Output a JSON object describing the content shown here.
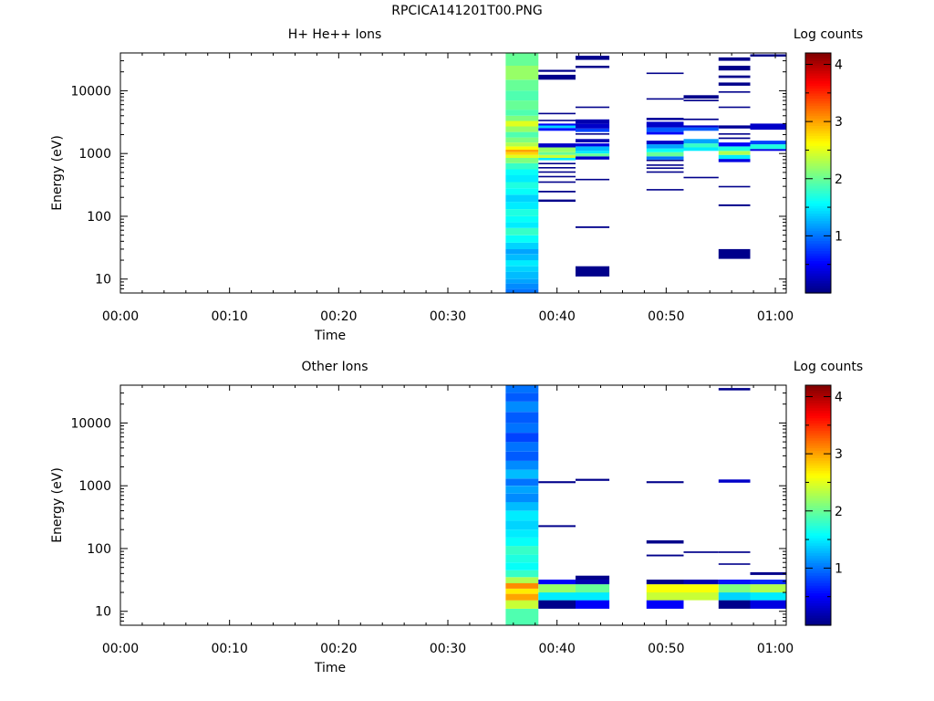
{
  "figure_title": "RPCICA141201T00.PNG",
  "colors": {
    "axis": "#000000",
    "colormap": "jet",
    "colormap_stops": [
      "#00007f",
      "#0000ff",
      "#007fff",
      "#00ffff",
      "#7fff7f",
      "#ffff00",
      "#ff7f00",
      "#ff0000",
      "#7f0000"
    ]
  },
  "chart_data": [
    {
      "type": "heatmap",
      "title": "H+ He++ Ions",
      "xlabel": "Time",
      "ylabel": "Energy (eV)",
      "xticks": [
        "00:00",
        "00:10",
        "00:20",
        "00:30",
        "00:40",
        "00:50",
        "01:00"
      ],
      "xlim_minutes": [
        0,
        61
      ],
      "y_scale": "log",
      "yticks": [
        "10",
        "100",
        "1000",
        "10000"
      ],
      "ylim": [
        6,
        40000
      ],
      "colorbar": {
        "label": "Log counts",
        "range": [
          0,
          4.2
        ],
        "ticks": [
          "1",
          "2",
          "3",
          "4"
        ]
      },
      "columns": [
        {
          "t0": 35.3,
          "t1": 38.3,
          "cells": [
            [
              6,
              7,
              1.0
            ],
            [
              7,
              8.5,
              1.1
            ],
            [
              8.5,
              10,
              1.2
            ],
            [
              10,
              13,
              1.3
            ],
            [
              13,
              16,
              1.4
            ],
            [
              16,
              20,
              1.5
            ],
            [
              20,
              25,
              1.3
            ],
            [
              25,
              30,
              1.2
            ],
            [
              30,
              38,
              1.4
            ],
            [
              38,
              50,
              1.6
            ],
            [
              50,
              65,
              1.8
            ],
            [
              65,
              80,
              1.5
            ],
            [
              80,
              100,
              1.6
            ],
            [
              100,
              130,
              1.7
            ],
            [
              130,
              170,
              1.5
            ],
            [
              170,
              220,
              1.4
            ],
            [
              220,
              280,
              1.6
            ],
            [
              280,
              350,
              1.7
            ],
            [
              350,
              450,
              1.5
            ],
            [
              450,
              560,
              1.6
            ],
            [
              560,
              700,
              1.8
            ],
            [
              700,
              850,
              2.1
            ],
            [
              850,
              950,
              2.5
            ],
            [
              950,
              1050,
              2.8
            ],
            [
              1050,
              1150,
              3.0
            ],
            [
              1150,
              1300,
              2.6
            ],
            [
              1300,
              1500,
              2.3
            ],
            [
              1500,
              1800,
              2.1
            ],
            [
              1800,
              2200,
              1.9
            ],
            [
              2200,
              2700,
              2.2
            ],
            [
              2700,
              3300,
              2.5
            ],
            [
              3300,
              4000,
              2.1
            ],
            [
              4000,
              5000,
              1.9
            ],
            [
              5000,
              7000,
              2.0
            ],
            [
              7000,
              10000,
              1.9
            ],
            [
              10000,
              15000,
              2.0
            ],
            [
              15000,
              25000,
              2.2
            ],
            [
              25000,
              40000,
              2.0
            ]
          ]
        },
        {
          "t0": 38.3,
          "t1": 41.7,
          "cells": [
            [
              170,
              185,
              0.05
            ],
            [
              240,
              255,
              0.05
            ],
            [
              345,
              360,
              0.05
            ],
            [
              420,
              440,
              0.05
            ],
            [
              500,
              520,
              0.05
            ],
            [
              590,
              610,
              0.05
            ],
            [
              690,
              710,
              0.05
            ],
            [
              780,
              850,
              1.5
            ],
            [
              850,
              950,
              2.4
            ],
            [
              950,
              1050,
              2.0
            ],
            [
              1050,
              1250,
              2.2
            ],
            [
              1250,
              1450,
              0.3
            ],
            [
              2300,
              2550,
              0.6
            ],
            [
              2550,
              2800,
              1.4
            ],
            [
              2800,
              3000,
              0.5
            ],
            [
              3300,
              3450,
              0.05
            ],
            [
              4300,
              4450,
              0.05
            ],
            [
              15000,
              18000,
              0.05
            ],
            [
              20000,
              21500,
              0.05
            ]
          ]
        },
        {
          "t0": 41.7,
          "t1": 44.8,
          "cells": [
            [
              11,
              16,
              0.05
            ],
            [
              65,
              69,
              0.05
            ],
            [
              380,
              395,
              0.05
            ],
            [
              800,
              900,
              0.3
            ],
            [
              900,
              1000,
              2.0
            ],
            [
              1000,
              1100,
              1.5
            ],
            [
              1100,
              1300,
              1.3
            ],
            [
              1300,
              1450,
              0.4
            ],
            [
              1500,
              1700,
              0.2
            ],
            [
              2000,
              2100,
              0.05
            ],
            [
              2200,
              2500,
              0.8
            ],
            [
              2500,
              3000,
              0.3
            ],
            [
              3000,
              3500,
              0.2
            ],
            [
              5300,
              5600,
              0.05
            ],
            [
              23000,
              25000,
              0.05
            ],
            [
              31000,
              36000,
              0.05
            ]
          ]
        },
        {
          "t0": 48.2,
          "t1": 51.6,
          "cells": [
            [
              260,
              272,
              0.05
            ],
            [
              500,
              520,
              0.05
            ],
            [
              580,
              600,
              0.05
            ],
            [
              650,
              670,
              0.05
            ],
            [
              770,
              800,
              0.05
            ],
            [
              800,
              900,
              1.0
            ],
            [
              900,
              1050,
              2.0
            ],
            [
              1050,
              1200,
              1.6
            ],
            [
              1200,
              1400,
              1.2
            ],
            [
              1400,
              1600,
              0.3
            ],
            [
              2000,
              2200,
              0.5
            ],
            [
              2200,
              2600,
              0.9
            ],
            [
              2600,
              3200,
              0.3
            ],
            [
              3400,
              3700,
              0.1
            ],
            [
              7200,
              7600,
              0.05
            ],
            [
              18500,
              19500,
              0.05
            ]
          ]
        },
        {
          "t0": 51.6,
          "t1": 54.8,
          "cells": [
            [
              410,
              425,
              0.05
            ],
            [
              1100,
              1250,
              1.5
            ],
            [
              1250,
              1450,
              1.8
            ],
            [
              1450,
              1700,
              1.2
            ],
            [
              2300,
              2600,
              0.9
            ],
            [
              2600,
              2800,
              0.3
            ],
            [
              3400,
              3600,
              0.05
            ],
            [
              6800,
              7200,
              0.05
            ],
            [
              7500,
              8500,
              0.05
            ]
          ]
        },
        {
          "t0": 54.8,
          "t1": 57.7,
          "cells": [
            [
              21,
              30,
              0.05
            ],
            [
              145,
              155,
              0.05
            ],
            [
              290,
              305,
              0.05
            ],
            [
              730,
              820,
              0.4
            ],
            [
              820,
              950,
              1.5
            ],
            [
              950,
              1100,
              2.3
            ],
            [
              1100,
              1300,
              1.7
            ],
            [
              1300,
              1500,
              0.5
            ],
            [
              1700,
              1800,
              0.05
            ],
            [
              2000,
              2100,
              0.05
            ],
            [
              2500,
              2800,
              0.1
            ],
            [
              5300,
              5600,
              0.05
            ],
            [
              9300,
              9800,
              0.05
            ],
            [
              12000,
              13500,
              0.05
            ],
            [
              16000,
              17500,
              0.05
            ],
            [
              21000,
              25000,
              0.05
            ],
            [
              30000,
              34000,
              0.05
            ]
          ]
        },
        {
          "t0": 57.7,
          "t1": 61,
          "cells": [
            [
              1100,
              1180,
              0.4
            ],
            [
              1180,
              1400,
              1.7
            ],
            [
              1400,
              1600,
              0.8
            ],
            [
              2400,
              3000,
              0.3
            ],
            [
              35000,
              38000,
              0.05
            ]
          ]
        }
      ]
    },
    {
      "type": "heatmap",
      "title": "Other Ions",
      "xlabel": "Time",
      "ylabel": "Energy (eV)",
      "xticks": [
        "00:00",
        "00:10",
        "00:20",
        "00:30",
        "00:40",
        "00:50",
        "01:00"
      ],
      "xlim_minutes": [
        0,
        61
      ],
      "y_scale": "log",
      "yticks": [
        "10",
        "100",
        "1000",
        "10000"
      ],
      "ylim": [
        6,
        40000
      ],
      "colorbar": {
        "label": "Log counts",
        "range": [
          0,
          4.2
        ],
        "ticks": [
          "1",
          "2",
          "3",
          "4"
        ]
      },
      "columns": [
        {
          "t0": 35.3,
          "t1": 38.3,
          "cells": [
            [
              6,
              11,
              1.9
            ],
            [
              11,
              15,
              2.4
            ],
            [
              15,
              19,
              3.0
            ],
            [
              19,
              23,
              2.7
            ],
            [
              23,
              28,
              3.1
            ],
            [
              28,
              35,
              2.3
            ],
            [
              35,
              45,
              1.8
            ],
            [
              45,
              60,
              1.6
            ],
            [
              60,
              80,
              1.7
            ],
            [
              80,
              110,
              1.8
            ],
            [
              110,
              150,
              1.6
            ],
            [
              150,
              200,
              1.5
            ],
            [
              200,
              280,
              1.4
            ],
            [
              280,
              400,
              1.5
            ],
            [
              400,
              550,
              1.3
            ],
            [
              550,
              750,
              1.1
            ],
            [
              750,
              1000,
              1.2
            ],
            [
              1000,
              1300,
              1.0
            ],
            [
              1300,
              1800,
              1.3
            ],
            [
              1800,
              2500,
              1.1
            ],
            [
              2500,
              3500,
              0.9
            ],
            [
              3500,
              5000,
              1.0
            ],
            [
              5000,
              7000,
              0.8
            ],
            [
              7000,
              10000,
              1.0
            ],
            [
              10000,
              15000,
              0.9
            ],
            [
              15000,
              22000,
              1.1
            ],
            [
              22000,
              30000,
              0.9
            ],
            [
              30000,
              40000,
              1.0
            ]
          ]
        },
        {
          "t0": 38.3,
          "t1": 41.7,
          "cells": [
            [
              11,
              15,
              0.05
            ],
            [
              15,
              20,
              1.5
            ],
            [
              20,
              27,
              2.2
            ],
            [
              27,
              32,
              0.5
            ],
            [
              220,
              235,
              0.05
            ],
            [
              1100,
              1180,
              0.05
            ]
          ]
        },
        {
          "t0": 41.7,
          "t1": 44.8,
          "cells": [
            [
              11,
              15,
              0.5
            ],
            [
              15,
              20,
              1.5
            ],
            [
              20,
              27,
              2.0
            ],
            [
              27,
              32,
              0.2
            ],
            [
              32,
              37,
              0.05
            ],
            [
              1200,
              1290,
              0.05
            ]
          ]
        },
        {
          "t0": 48.2,
          "t1": 51.6,
          "cells": [
            [
              11,
              15,
              0.5
            ],
            [
              15,
              20,
              2.4
            ],
            [
              20,
              27,
              2.6
            ],
            [
              27,
              32,
              0.05
            ],
            [
              75,
              80,
              0.05
            ],
            [
              120,
              135,
              0.05
            ],
            [
              1100,
              1180,
              0.05
            ]
          ]
        },
        {
          "t0": 51.6,
          "t1": 54.8,
          "cells": [
            [
              15,
              20,
              2.4
            ],
            [
              20,
              27,
              2.6
            ],
            [
              27,
              32,
              0.2
            ],
            [
              85,
              90,
              0.05
            ]
          ]
        },
        {
          "t0": 54.8,
          "t1": 57.7,
          "cells": [
            [
              11,
              15,
              0.05
            ],
            [
              15,
              20,
              1.4
            ],
            [
              20,
              27,
              2.1
            ],
            [
              27,
              32,
              0.6
            ],
            [
              55,
              58,
              0.05
            ],
            [
              85,
              90,
              0.05
            ],
            [
              1120,
              1260,
              0.3
            ],
            [
              33000,
              36000,
              0.05
            ]
          ]
        },
        {
          "t0": 57.7,
          "t1": 61,
          "cells": [
            [
              11,
              15,
              0.4
            ],
            [
              15,
              20,
              1.5
            ],
            [
              20,
              27,
              2.3
            ],
            [
              27,
              32,
              0.7
            ],
            [
              38,
              42,
              0.05
            ]
          ]
        }
      ]
    }
  ]
}
